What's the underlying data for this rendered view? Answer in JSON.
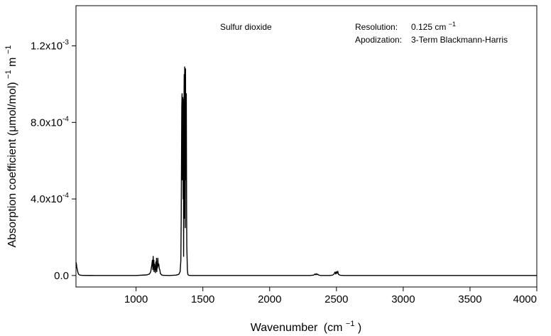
{
  "chart_data": {
    "type": "line",
    "title": "Sulfur dioxide",
    "xlabel": "Wavenumber",
    "xlabel_unit": "(cm",
    "xlabel_unit_sup": "−1",
    "xlabel_unit_close": ")",
    "ylabel": "Absorption coefficient  (μmol/mol)",
    "ylabel_sup1": "−1",
    "ylabel_m": " m",
    "ylabel_sup2": "−1",
    "annotations": {
      "resolution_label": "Resolution:",
      "resolution_value": "0.125 cm",
      "resolution_sup": "−1",
      "apodization_label": "Apodization:",
      "apodization_value": "3-Term Blackmann-Harris"
    },
    "xlim": [
      550,
      4000
    ],
    "ylim": [
      -6e-05,
      0.00141
    ],
    "x_ticks": [
      {
        "value": 1000,
        "label": "1000"
      },
      {
        "value": 1500,
        "label": "1500"
      },
      {
        "value": 2000,
        "label": "2000"
      },
      {
        "value": 2500,
        "label": "2500"
      },
      {
        "value": 3000,
        "label": "3000"
      },
      {
        "value": 3500,
        "label": "3500"
      },
      {
        "value": 4000,
        "label": "4000"
      }
    ],
    "y_ticks": [
      {
        "value": 0,
        "label": "0.0"
      },
      {
        "value": 0.0004,
        "label": "4.0x10",
        "exp": "-4"
      },
      {
        "value": 0.0008,
        "label": "8.0x10",
        "exp": "-4"
      },
      {
        "value": 0.0012,
        "label": "1.2x10",
        "exp": "-3"
      }
    ],
    "series": [
      {
        "color": "#000000",
        "x": [
          550,
          553,
          556,
          560,
          565,
          570,
          580,
          600,
          700,
          800,
          900,
          1000,
          1080,
          1100,
          1110,
          1118,
          1122,
          1126,
          1128,
          1130,
          1133,
          1135,
          1138,
          1140,
          1143,
          1145,
          1148,
          1150,
          1153,
          1155,
          1158,
          1160,
          1163,
          1166,
          1170,
          1174,
          1178,
          1182,
          1190,
          1200,
          1250,
          1300,
          1320,
          1330,
          1335,
          1338,
          1340,
          1342,
          1344,
          1346,
          1348,
          1350,
          1352,
          1354,
          1356,
          1358,
          1360,
          1362,
          1364,
          1366,
          1368,
          1370,
          1372,
          1374,
          1376,
          1378,
          1380,
          1384,
          1388,
          1395,
          1410,
          1500,
          1800,
          2100,
          2300,
          2330,
          2340,
          2345,
          2350,
          2355,
          2360,
          2365,
          2370,
          2380,
          2400,
          2450,
          2470,
          2480,
          2485,
          2490,
          2495,
          2500,
          2505,
          2510,
          2515,
          2520,
          2530,
          2560,
          2600,
          3000,
          3500,
          4000
        ],
        "y": [
          7e-05,
          6e-05,
          4.5e-05,
          3e-05,
          1.5e-05,
          6e-06,
          2e-06,
          5e-07,
          0,
          0,
          0,
          0,
          3e-06,
          8e-06,
          2e-05,
          5.5e-05,
          8e-05,
          3e-05,
          0.0001,
          4e-05,
          8e-05,
          2e-05,
          6e-05,
          3e-05,
          5e-05,
          1.5e-05,
          7e-05,
          3e-05,
          9e-05,
          2e-05,
          6e-05,
          4e-05,
          9e-05,
          5e-05,
          6e-05,
          3.5e-05,
          3e-05,
          1e-05,
          4e-06,
          1e-06,
          0,
          2e-06,
          6e-06,
          2e-05,
          8e-05,
          0.0003,
          0.0006,
          0.00088,
          0.00095,
          0.0005,
          0.00065,
          0.00093,
          0.0004,
          0.00092,
          0.0001,
          0.00084,
          0.00105,
          0.0003,
          0.00109,
          0.00075,
          0.00025,
          0.00108,
          0.0005,
          0.00085,
          0.00095,
          0.00035,
          0.00015,
          3e-05,
          5e-06,
          1e-06,
          0,
          0,
          0,
          0,
          0,
          2e-06,
          8e-06,
          4e-06,
          9e-06,
          5e-06,
          7e-06,
          3e-06,
          2e-06,
          0,
          0,
          0,
          2e-06,
          6e-06,
          1.2e-05,
          1.8e-05,
          8e-06,
          2e-05,
          1.2e-05,
          2.2e-05,
          6e-06,
          4e-06,
          1e-06,
          0,
          0,
          0,
          0,
          0
        ]
      }
    ]
  }
}
